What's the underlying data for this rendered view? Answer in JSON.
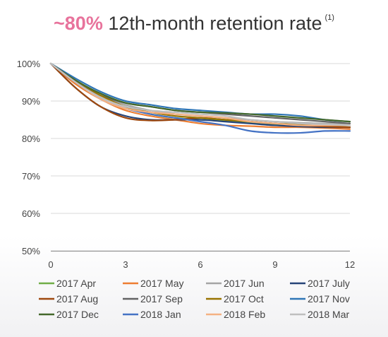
{
  "title": {
    "accent": "~80%",
    "main": "12th-month retention rate",
    "footnote": "(1)"
  },
  "chart_data": {
    "type": "line",
    "title": "~80% 12th-month retention rate (1)",
    "xlabel": "",
    "ylabel": "",
    "xlim": [
      0,
      12
    ],
    "ylim": [
      50,
      100
    ],
    "x_ticks": [
      0,
      3,
      6,
      9,
      12
    ],
    "x_tick_labels": [
      "0",
      "3",
      "6",
      "9",
      "12"
    ],
    "y_ticks": [
      50,
      60,
      70,
      80,
      90,
      100
    ],
    "y_tick_labels": [
      "50%",
      "60%",
      "70%",
      "80%",
      "90%",
      "100%"
    ],
    "grid": "horizontal",
    "legend_position": "bottom",
    "x": [
      0,
      1,
      2,
      3,
      4,
      5,
      6,
      7,
      8,
      9,
      10,
      11,
      12
    ],
    "series": [
      {
        "name": "2017 Apr",
        "color": "#70ad47",
        "values": [
          100,
          95.5,
          91,
          88.5,
          86.5,
          85.5,
          85,
          84.8,
          84.2,
          83.8,
          83.5,
          83.2,
          83
        ]
      },
      {
        "name": "2017 May",
        "color": "#ed7d31",
        "values": [
          100,
          94.5,
          90.5,
          87.5,
          86,
          85,
          84,
          83.5,
          83.3,
          83,
          83,
          82.8,
          82.5
        ]
      },
      {
        "name": "2017 Jun",
        "color": "#a5a5a5",
        "values": [
          100,
          95,
          91.5,
          89,
          87.5,
          86.5,
          86,
          85.5,
          85,
          84.5,
          84.2,
          84,
          84
        ]
      },
      {
        "name": "2017 July",
        "color": "#264478",
        "values": [
          100,
          93.5,
          88.5,
          86,
          85,
          85,
          85,
          84.5,
          84,
          83.5,
          83.2,
          83,
          83
        ]
      },
      {
        "name": "2017 Aug",
        "color": "#9e480e",
        "values": [
          100,
          93.5,
          88.5,
          85.5,
          84.8,
          85,
          85.5,
          85,
          84.5,
          84,
          83.5,
          83.2,
          83
        ]
      },
      {
        "name": "2017 Sep",
        "color": "#636363",
        "values": [
          100,
          95,
          91.5,
          89.5,
          88.5,
          87.5,
          87,
          86.5,
          86,
          85.5,
          85,
          84.5,
          84
        ]
      },
      {
        "name": "2017 Oct",
        "color": "#997300",
        "values": [
          100,
          95.5,
          91.5,
          88.5,
          87,
          86,
          85.5,
          85,
          84.5,
          84,
          83.8,
          83.5,
          83.5
        ]
      },
      {
        "name": "2017 Nov",
        "color": "#2e75b6",
        "values": [
          100,
          96,
          92.5,
          90,
          89,
          88,
          87.5,
          87,
          86.5,
          86.5,
          86,
          85,
          84.5
        ]
      },
      {
        "name": "2017 Dec",
        "color": "#43682b",
        "values": [
          100,
          95.5,
          92,
          89.5,
          88.5,
          87.5,
          87,
          86.8,
          86.5,
          86,
          85.5,
          85,
          84.5
        ]
      },
      {
        "name": "2018 Jan",
        "color": "#4472c4",
        "values": [
          100,
          95,
          90.5,
          88,
          86.5,
          85.5,
          84.5,
          83.5,
          82,
          81.5,
          81.5,
          82,
          82
        ]
      },
      {
        "name": "2018 Feb",
        "color": "#f4b183",
        "values": [
          100,
          95,
          90.5,
          88,
          87,
          86.5,
          86,
          85.5,
          84.5,
          84,
          83.5,
          83.5,
          83.5
        ]
      },
      {
        "name": "2018 Mar",
        "color": "#bfbfbf",
        "values": [
          100,
          95,
          91,
          88.5,
          87.5,
          87,
          86.5,
          86,
          85,
          84.5,
          84,
          83.8,
          83.5
        ]
      }
    ]
  }
}
